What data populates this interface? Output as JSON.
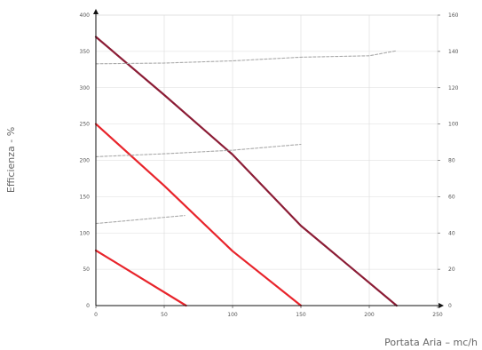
{
  "chart_data": {
    "type": "line",
    "title": "",
    "xlabel": "Portata Aria – mc/h",
    "ylabel": "Efficienza - %",
    "xlim": [
      0,
      250
    ],
    "ylim": [
      0,
      400
    ],
    "y2lim": [
      0,
      160
    ],
    "x_ticks": [
      0,
      50,
      100,
      150,
      200,
      250
    ],
    "y_ticks": [
      0,
      50,
      100,
      150,
      200,
      250,
      300,
      350,
      400
    ],
    "y2_ticks": [
      0,
      20,
      40,
      60,
      80,
      100,
      120,
      140,
      160
    ],
    "x_tick_labels": [
      "0",
      "50",
      "100",
      "150",
      "200",
      "250"
    ],
    "y_tick_labels": [
      "0",
      "50",
      "100",
      "150",
      "200",
      "250",
      "300",
      "350",
      "400"
    ],
    "y2_tick_labels": [
      "0",
      "20",
      "40",
      "60",
      "80",
      "100",
      "120",
      "140",
      "160"
    ],
    "grid": true,
    "legend": "none",
    "series": [
      {
        "color": "#e8242b",
        "style": "solid",
        "points": [
          [
            0,
            76
          ],
          [
            66,
            0
          ]
        ]
      },
      {
        "color": "#e8242b",
        "style": "solid",
        "points": [
          [
            0,
            250
          ],
          [
            50,
            165
          ],
          [
            100,
            75
          ],
          [
            150,
            0
          ]
        ]
      },
      {
        "color": "#8b1c35",
        "style": "solid",
        "points": [
          [
            0,
            370
          ],
          [
            50,
            290
          ],
          [
            100,
            208
          ],
          [
            150,
            110
          ],
          [
            220,
            0
          ]
        ]
      },
      {
        "color": "#a9a9a9",
        "style": "dashed",
        "points": [
          [
            0,
            113
          ],
          [
            65,
            124
          ]
        ]
      },
      {
        "color": "#a9a9a9",
        "style": "dashed",
        "points": [
          [
            0,
            205
          ],
          [
            50,
            209
          ],
          [
            100,
            214
          ],
          [
            150,
            222
          ]
        ]
      },
      {
        "color": "#a9a9a9",
        "style": "dashed",
        "points": [
          [
            0,
            333
          ],
          [
            50,
            334
          ],
          [
            100,
            337
          ],
          [
            150,
            342
          ],
          [
            200,
            344
          ],
          [
            220,
            351
          ]
        ]
      }
    ]
  }
}
